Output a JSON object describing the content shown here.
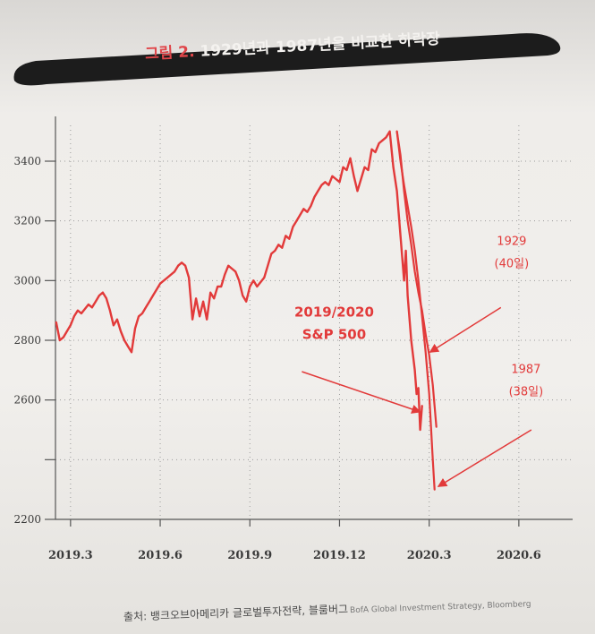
{
  "figure": {
    "label": "그림 2.",
    "title": "1929년과 1987년을  비교한 하락장",
    "source_prefix": "출처: 뱅크오브아메리카 글로벌투자전략, 블룸버그",
    "source_en": "BofA Global Investment Strategy, Bloomberg"
  },
  "colors": {
    "series": "#e23a3a",
    "banner": "#1c1c1c",
    "axis": "#555555"
  },
  "chart_data": {
    "type": "line",
    "title": "1929년과 1987년을  비교한 하락장",
    "xlabel": "",
    "ylabel": "",
    "xlim": [
      2019.208,
      2020.65
    ],
    "ylim": [
      2200,
      3520
    ],
    "x_ticks": [
      {
        "x": 2019.25,
        "label": "2019.3"
      },
      {
        "x": 2019.5,
        "label": "2019.6"
      },
      {
        "x": 2019.75,
        "label": "2019.9"
      },
      {
        "x": 2020.0,
        "label": "2019.12"
      },
      {
        "x": 2020.25,
        "label": "2020.3"
      },
      {
        "x": 2020.5,
        "label": "2020.6"
      }
    ],
    "y_ticks": [
      {
        "y": 2200,
        "label": "2200"
      },
      {
        "y": 2400,
        "label": ""
      },
      {
        "y": 2600,
        "label": "2600"
      },
      {
        "y": 2800,
        "label": "2800"
      },
      {
        "y": 3000,
        "label": "3000"
      },
      {
        "y": 3200,
        "label": "3200"
      },
      {
        "y": 3400,
        "label": "3400"
      }
    ],
    "grid": "dotted",
    "series": [
      {
        "name": "2019/2020 S&P 500",
        "x": [
          2019.21,
          2019.22,
          2019.23,
          2019.25,
          2019.26,
          2019.27,
          2019.28,
          2019.3,
          2019.31,
          2019.32,
          2019.33,
          2019.34,
          2019.35,
          2019.36,
          2019.37,
          2019.38,
          2019.39,
          2019.4,
          2019.41,
          2019.42,
          2019.43,
          2019.44,
          2019.45,
          2019.46,
          2019.47,
          2019.48,
          2019.5,
          2019.52,
          2019.54,
          2019.55,
          2019.56,
          2019.57,
          2019.58,
          2019.59,
          2019.6,
          2019.61,
          2019.62,
          2019.63,
          2019.64,
          2019.65,
          2019.66,
          2019.67,
          2019.68,
          2019.69,
          2019.7,
          2019.71,
          2019.72,
          2019.73,
          2019.74,
          2019.75,
          2019.76,
          2019.77,
          2019.79,
          2019.8,
          2019.81,
          2019.82,
          2019.83,
          2019.84,
          2019.85,
          2019.86,
          2019.87,
          2019.88,
          2019.89,
          2019.9,
          2019.91,
          2019.92,
          2019.93,
          2019.94,
          2019.95,
          2019.96,
          2019.97,
          2019.98,
          2019.99,
          2020.0,
          2020.01,
          2020.02,
          2020.03,
          2020.04,
          2020.05,
          2020.06,
          2020.07,
          2020.08,
          2020.09,
          2020.1,
          2020.11,
          2020.12,
          2020.13,
          2020.14,
          2020.15,
          2020.16,
          2020.17,
          2020.18,
          2020.185,
          2020.19,
          2020.2,
          2020.21,
          2020.215,
          2020.22,
          2020.225,
          2020.23
        ],
        "y": [
          2860,
          2800,
          2810,
          2850,
          2880,
          2900,
          2890,
          2920,
          2910,
          2930,
          2950,
          2960,
          2940,
          2900,
          2850,
          2870,
          2830,
          2800,
          2780,
          2760,
          2840,
          2880,
          2890,
          2910,
          2930,
          2950,
          2990,
          3010,
          3030,
          3050,
          3060,
          3050,
          3010,
          2870,
          2940,
          2880,
          2930,
          2870,
          2960,
          2940,
          2980,
          2980,
          3020,
          3050,
          3040,
          3030,
          3000,
          2950,
          2930,
          2980,
          3000,
          2980,
          3010,
          3050,
          3090,
          3100,
          3120,
          3110,
          3150,
          3140,
          3180,
          3200,
          3220,
          3240,
          3230,
          3250,
          3280,
          3300,
          3320,
          3330,
          3320,
          3350,
          3340,
          3330,
          3380,
          3370,
          3410,
          3350,
          3300,
          3340,
          3380,
          3370,
          3440,
          3430,
          3460,
          3470,
          3480,
          3500,
          3380,
          3300,
          3150,
          3000,
          3100,
          2950,
          2800,
          2700,
          2620,
          2640,
          2500,
          2580
        ]
      },
      {
        "name": "1929 (40일)",
        "x": [
          2020.16,
          2020.17,
          2020.18,
          2020.19,
          2020.2,
          2020.21,
          2020.22,
          2020.23,
          2020.24,
          2020.25,
          2020.26,
          2020.27
        ],
        "y": [
          3500,
          3420,
          3300,
          3200,
          3120,
          3030,
          2960,
          2900,
          2820,
          2750,
          2650,
          2510
        ]
      },
      {
        "name": "1987 (38일)",
        "x": [
          2020.16,
          2020.17,
          2020.18,
          2020.19,
          2020.2,
          2020.21,
          2020.22,
          2020.23,
          2020.24,
          2020.25,
          2020.26,
          2020.265
        ],
        "y": [
          3500,
          3400,
          3320,
          3250,
          3180,
          3100,
          3000,
          2880,
          2760,
          2620,
          2400,
          2300
        ]
      }
    ],
    "annotations": [
      {
        "lines": [
          "2019/2020",
          "S&P 500"
        ],
        "text_at": [
          2019.985,
          2880
        ],
        "arrow_from": [
          2019.895,
          2695
        ],
        "arrow_to": [
          2020.225,
          2560
        ],
        "emphasis": true
      },
      {
        "lines": [
          "1929",
          "(40일)"
        ],
        "text_at": [
          2020.48,
          3120
        ],
        "arrow_from": [
          2020.45,
          2910
        ],
        "arrow_to": [
          2020.252,
          2760
        ],
        "emphasis": false
      },
      {
        "lines": [
          "1987",
          "(38일)"
        ],
        "text_at": [
          2020.52,
          2690
        ],
        "arrow_from": [
          2020.535,
          2500
        ],
        "arrow_to": [
          2020.275,
          2310
        ],
        "emphasis": false
      }
    ]
  }
}
